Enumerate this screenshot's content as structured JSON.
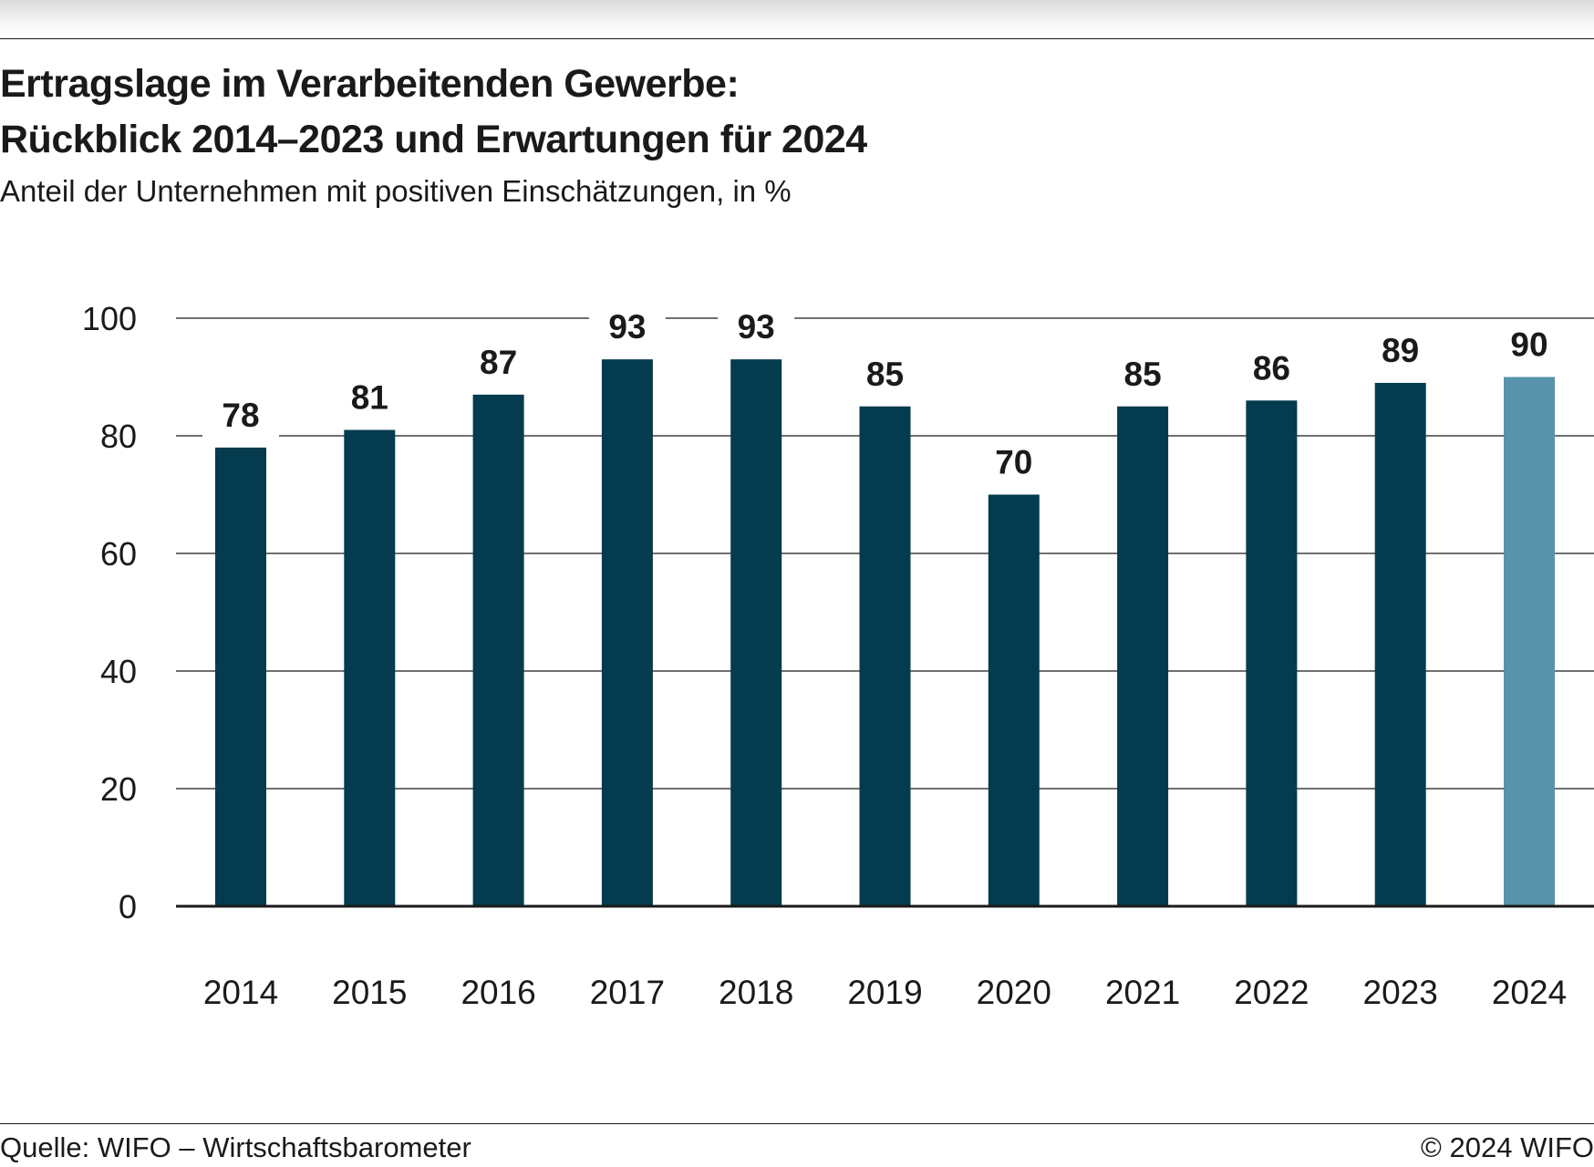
{
  "header": {
    "title_line1": "Ertragslage im Verarbeitenden Gewerbe:",
    "title_line2": "Rückblick 2014–2023 und Erwartungen für 2024",
    "subtitle": "Anteil der Unternehmen mit positiven Einschätzungen, in %"
  },
  "chart_data": {
    "type": "bar",
    "categories": [
      "2014",
      "2015",
      "2016",
      "2017",
      "2018",
      "2019",
      "2020",
      "2021",
      "2022",
      "2023",
      "2024"
    ],
    "values": [
      78,
      81,
      87,
      93,
      93,
      85,
      70,
      85,
      86,
      89,
      90
    ],
    "ylim": [
      0,
      100
    ],
    "yticks": [
      0,
      20,
      40,
      60,
      80,
      100
    ],
    "grid": true,
    "data_labels": true,
    "colors": {
      "bar": "#043b4f",
      "highlight": "#5893ab",
      "grid": "#1a1a1a",
      "text": "#1a1a1a"
    },
    "highlight_category": "2024"
  },
  "footer": {
    "source": "Quelle: WIFO – Wirtschaftsbarometer",
    "copyright": "© 2024 WIFO"
  }
}
